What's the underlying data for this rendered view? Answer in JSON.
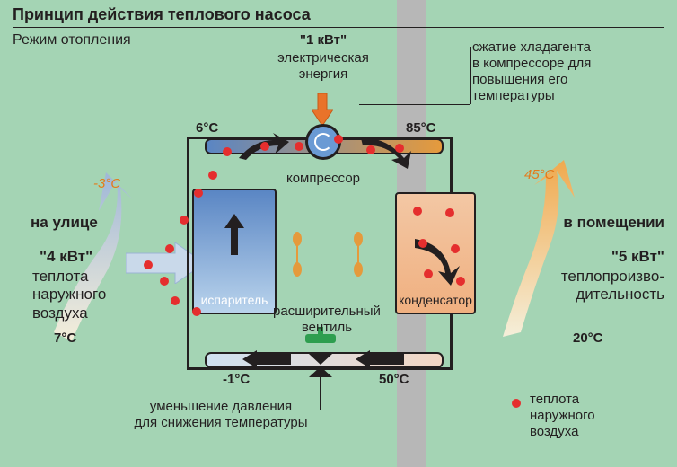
{
  "title": "Принцип действия теплового насоса",
  "subtitle": "Режим отопления",
  "top": {
    "power_in": "\"1 кВт\"",
    "power_in_desc": "электрическая\nэнергия",
    "compress_desc": "сжатие хладагента\nв компрессоре для\nповышения его\nтемпературы"
  },
  "left": {
    "location": "на улице",
    "power": "\"4 кВт\"",
    "desc": "теплота\nнаружного\nвоздуха",
    "t_in": "7°C",
    "t_out": "-3°C"
  },
  "right": {
    "location": "в помещении",
    "power": "\"5 кВт\"",
    "desc": "теплопроизво-\nдительность",
    "t_out": "45°C",
    "t_in": "20°C"
  },
  "loop": {
    "t_tl": "6°C",
    "t_tr": "85°C",
    "t_bl": "-1°C",
    "t_br": "50°C",
    "compressor_label": "компрессор",
    "evaporator_label": "испаритель",
    "condenser_label": "конденсатор",
    "expansion_label": "расширительный\nвентиль",
    "bottom_note": "уменьшение давления\nдля снижения температуры"
  },
  "legend": {
    "dot": "теплота\nнаружного\nвоздуха"
  },
  "colors": {
    "bg": "#a4d4b4",
    "ink": "#231f20",
    "red": "#e52e2e",
    "orange": "#e59a3c",
    "blue": "#5a86c4",
    "lightblue": "#b9d3ec",
    "cond": "#f0b080",
    "pillar": "#b7b7b7",
    "accent_orange": "#e37b1c"
  },
  "dots": [
    [
      160,
      290
    ],
    [
      178,
      308
    ],
    [
      184,
      272
    ],
    [
      200,
      240
    ],
    [
      216,
      210
    ],
    [
      190,
      330
    ],
    [
      214,
      342
    ],
    [
      232,
      190
    ],
    [
      248,
      164
    ],
    [
      290,
      158
    ],
    [
      328,
      158
    ],
    [
      372,
      150
    ],
    [
      408,
      162
    ],
    [
      440,
      160
    ],
    [
      460,
      230
    ],
    [
      496,
      232
    ],
    [
      466,
      266
    ],
    [
      502,
      272
    ],
    [
      472,
      300
    ],
    [
      508,
      308
    ]
  ]
}
